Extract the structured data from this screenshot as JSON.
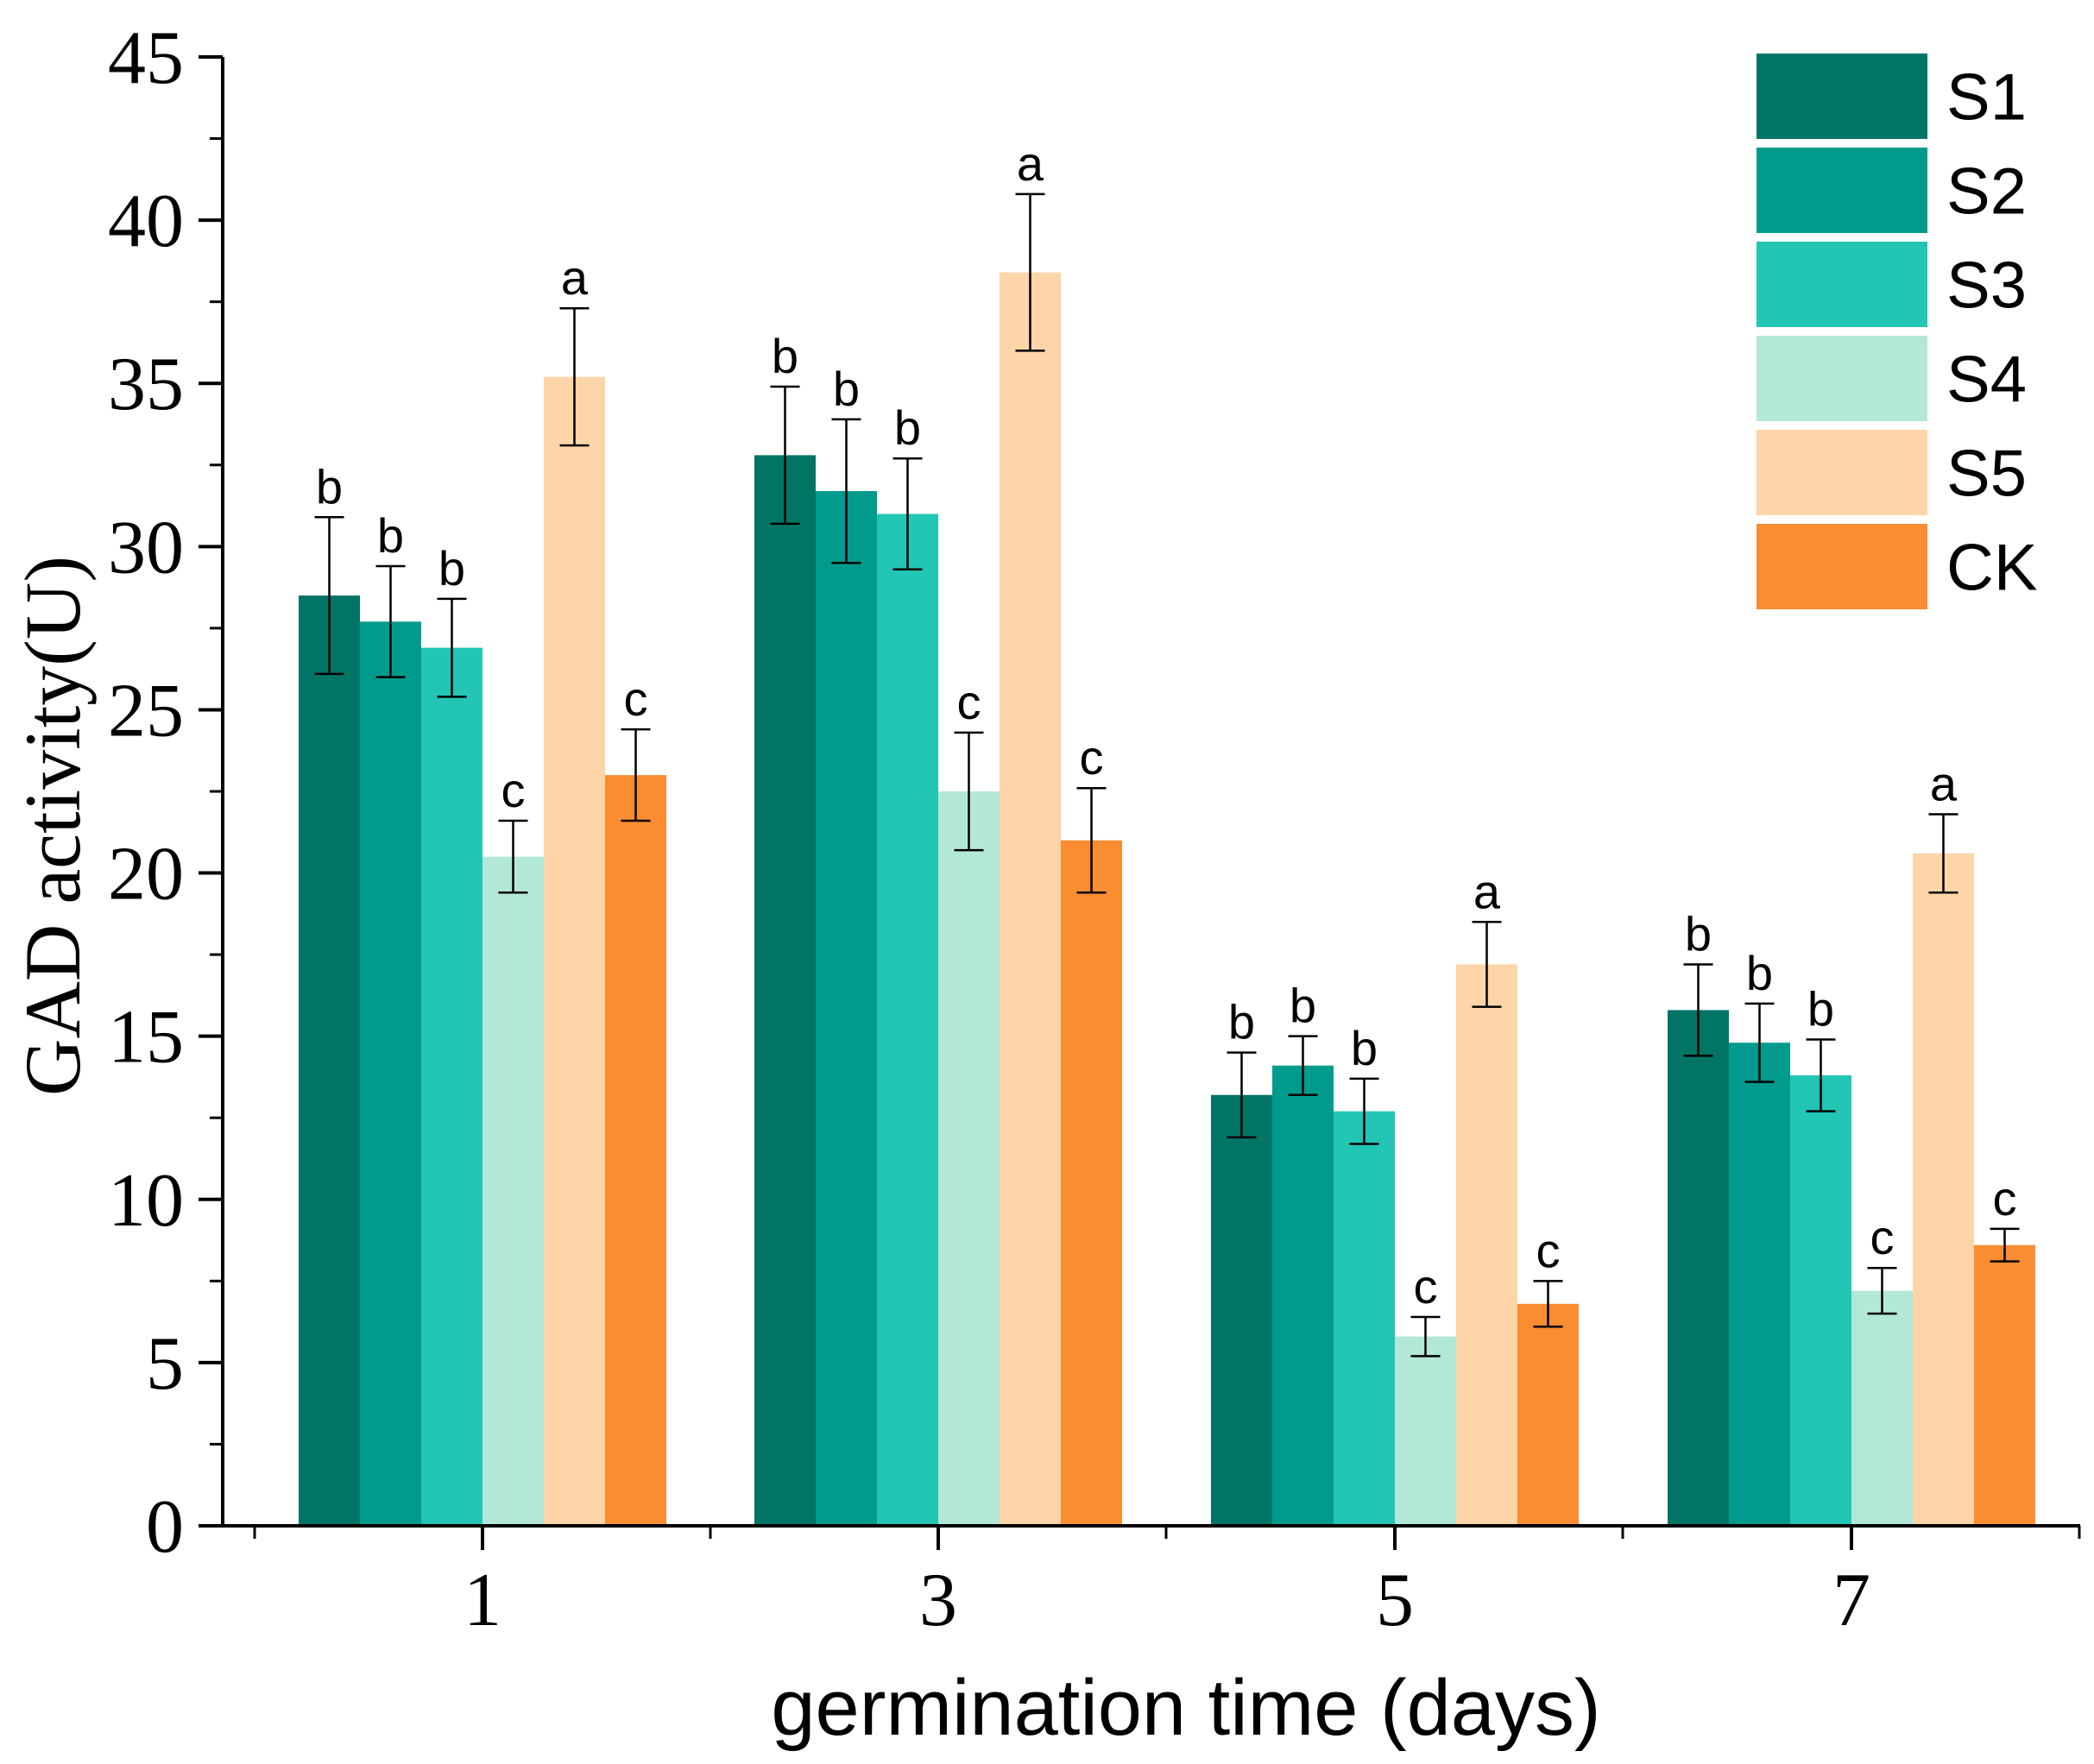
{
  "chart_data": {
    "type": "bar",
    "title": "",
    "xlabel": "germination time (days)",
    "ylabel": "GAD activity(U)",
    "categories": [
      "1",
      "3",
      "5",
      "7"
    ],
    "ylim": [
      0,
      45
    ],
    "yticks": [
      "0",
      "5",
      "10",
      "15",
      "20",
      "25",
      "30",
      "35",
      "40",
      "45"
    ],
    "grid": false,
    "legend_position": "top-right",
    "series": [
      {
        "name": "S1",
        "color": "#007566",
        "values": [
          28.5,
          32.8,
          13.2,
          15.8
        ],
        "errors": [
          2.4,
          2.1,
          1.3,
          1.4
        ],
        "labels": [
          "b",
          "b",
          "b",
          "b"
        ]
      },
      {
        "name": "S2",
        "color": "#009B8C",
        "values": [
          27.7,
          31.7,
          14.1,
          14.8
        ],
        "errors": [
          1.7,
          2.2,
          0.9,
          1.2
        ],
        "labels": [
          "b",
          "b",
          "b",
          "b"
        ]
      },
      {
        "name": "S3",
        "color": "#23C5B4",
        "values": [
          26.9,
          31.0,
          12.7,
          13.8
        ],
        "errors": [
          1.5,
          1.7,
          1.0,
          1.1
        ],
        "labels": [
          "b",
          "b",
          "b",
          "b"
        ]
      },
      {
        "name": "S4",
        "color": "#B3E8D8",
        "values": [
          20.5,
          22.5,
          5.8,
          7.2
        ],
        "errors": [
          1.1,
          1.8,
          0.6,
          0.7
        ],
        "labels": [
          "c",
          "c",
          "c",
          "c"
        ]
      },
      {
        "name": "S5",
        "color": "#FDD5A8",
        "values": [
          35.2,
          38.4,
          17.2,
          20.6
        ],
        "errors": [
          2.1,
          2.4,
          1.3,
          1.2
        ],
        "labels": [
          "a",
          "a",
          "a",
          "a"
        ]
      },
      {
        "name": "CK",
        "color": "#FA8C31",
        "values": [
          23.0,
          21.0,
          6.8,
          8.6
        ],
        "errors": [
          1.4,
          1.6,
          0.7,
          0.5
        ],
        "labels": [
          "c",
          "c",
          "c",
          "c"
        ]
      }
    ]
  }
}
